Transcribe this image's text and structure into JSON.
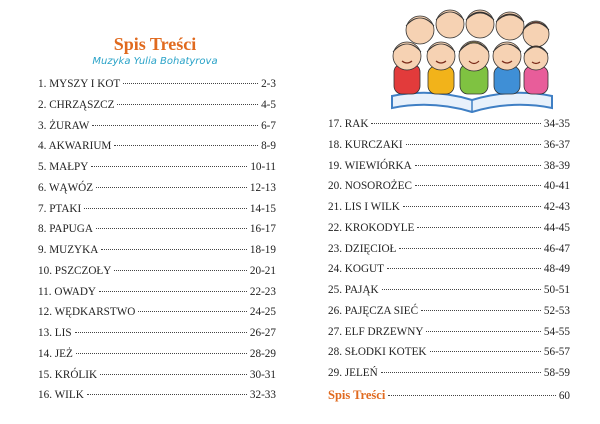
{
  "header": {
    "title": "Spis Treści",
    "subtitle": "Muzyka Yulia Bohatyrova"
  },
  "toc_left": [
    {
      "label": "1. MYSZY I KOT",
      "page": "2-3"
    },
    {
      "label": "2. CHRZĄSZCZ",
      "page": "4-5"
    },
    {
      "label": "3. ŻURAW",
      "page": "6-7"
    },
    {
      "label": "4. AKWARIUM",
      "page": "8-9"
    },
    {
      "label": "5. MAŁPY",
      "page": "10-11"
    },
    {
      "label": "6. WĄWÓZ",
      "page": "12-13"
    },
    {
      "label": "7. PTAKI",
      "page": "14-15"
    },
    {
      "label": "8. PAPUGA",
      "page": "16-17"
    },
    {
      "label": "9. MUZYKA",
      "page": "18-19"
    },
    {
      "label": "10. PSZCZOŁY",
      "page": "20-21"
    },
    {
      "label": "11. OWADY",
      "page": "22-23"
    },
    {
      "label": "12. WĘDKARSTWO",
      "page": "24-25"
    },
    {
      "label": "13. LIS",
      "page": "26-27"
    },
    {
      "label": "14. JEŻ",
      "page": "28-29"
    },
    {
      "label": "15. KRÓLIK",
      "page": "30-31"
    },
    {
      "label": "16. WILK",
      "page": "32-33"
    }
  ],
  "toc_right": [
    {
      "label": "17. RAK",
      "page": "34-35"
    },
    {
      "label": "18. KURCZAKI",
      "page": "36-37"
    },
    {
      "label": "19. WIEWIÓRKA",
      "page": "38-39"
    },
    {
      "label": "20. NOSOROŻEC",
      "page": "40-41"
    },
    {
      "label": "21. LIS I WILK",
      "page": "42-43"
    },
    {
      "label": "22. KROKODYLE",
      "page": "44-45"
    },
    {
      "label": "23. DZIĘCIOŁ",
      "page": "46-47"
    },
    {
      "label": "24. KOGUT",
      "page": "48-49"
    },
    {
      "label": "25. PAJĄK",
      "page": "50-51"
    },
    {
      "label": "26. PAJĘCZA SIEĆ",
      "page": "52-53"
    },
    {
      "label": "27. ELF DRZEWNY",
      "page": "54-55"
    },
    {
      "label": "28. SŁODKI KOTEK",
      "page": "56-57"
    },
    {
      "label": "29. JELEŃ",
      "page": "58-59"
    }
  ],
  "toc_final": {
    "label": "Spis Treści",
    "page": "60"
  },
  "illustration": {
    "icon": "children-reading-book-illustration"
  },
  "colors": {
    "title": "#e06a1f",
    "subtitle": "#2aa3c8"
  }
}
